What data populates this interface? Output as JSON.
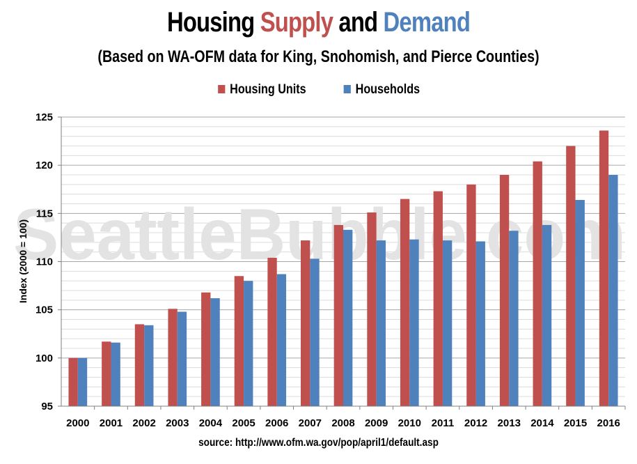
{
  "title_parts": {
    "part1": "Housing ",
    "supply": "Supply",
    "part2": " and ",
    "demand": "Demand"
  },
  "subtitle": "(Based on WA-OFM data for King, Snohomish, and Pierce Counties)",
  "watermark": "SeattleBubble.com",
  "source": "source: http://www.ofm.wa.gov/pop/april1/default.asp",
  "colors": {
    "housing_units": "#c0504d",
    "households": "#4f81bd",
    "watermark": "#e3e3e3"
  },
  "chart_data": {
    "type": "bar",
    "title": "Housing Supply and Demand",
    "subtitle": "(Based on WA-OFM data for King, Snohomish, and Pierce Counties)",
    "xlabel": "",
    "ylabel": "Index (2000 = 100)",
    "ylim": [
      95,
      125
    ],
    "yticks": [
      95,
      100,
      105,
      110,
      115,
      120,
      125
    ],
    "grid": true,
    "legend_position": "top",
    "categories": [
      "2000",
      "2001",
      "2002",
      "2003",
      "2004",
      "2005",
      "2006",
      "2007",
      "2008",
      "2009",
      "2010",
      "2011",
      "2012",
      "2013",
      "2014",
      "2015",
      "2016"
    ],
    "series": [
      {
        "name": "Housing Units",
        "color": "#c0504d",
        "values": [
          100.0,
          101.7,
          103.5,
          105.1,
          106.8,
          108.5,
          110.4,
          112.2,
          113.8,
          115.1,
          116.5,
          117.3,
          118.0,
          119.0,
          120.4,
          122.0,
          123.6
        ]
      },
      {
        "name": "Households",
        "color": "#4f81bd",
        "values": [
          100.0,
          101.6,
          103.4,
          104.8,
          106.2,
          108.0,
          108.7,
          110.3,
          113.3,
          112.2,
          112.3,
          112.2,
          112.1,
          113.2,
          113.8,
          116.4,
          119.0
        ]
      }
    ]
  }
}
